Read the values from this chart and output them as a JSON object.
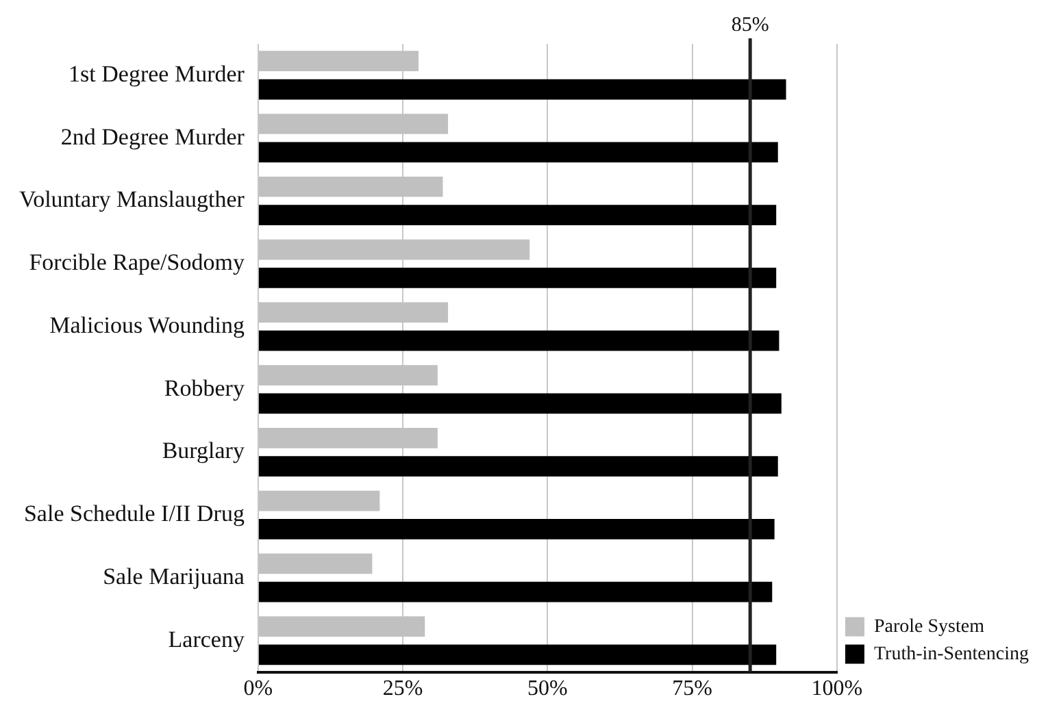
{
  "chart_data": {
    "type": "bar",
    "orientation": "horizontal",
    "categories": [
      "1st Degree Murder",
      "2nd Degree Murder",
      "Voluntary Manslaugther",
      "Forcible Rape/Sodomy",
      "Malicious Wounding",
      "Robbery",
      "Burglary",
      "Sale Schedule I/II Drug",
      "Sale Marijuana",
      "Larceny"
    ],
    "series": [
      {
        "name": "Parole System",
        "color": "#c0c0c0",
        "values": [
          27.7,
          32.8,
          31.9,
          46.9,
          32.8,
          31,
          31,
          21,
          19.7,
          28.8
        ]
      },
      {
        "name": "Truth-in-Sentencing",
        "color": "#000000",
        "values": [
          91.2,
          89.8,
          89.5,
          89.5,
          90,
          90.4,
          89.8,
          89.2,
          88.8,
          89.5
        ]
      }
    ],
    "xlim": [
      0,
      100
    ],
    "xticks": [
      {
        "value": 0,
        "label": "0%"
      },
      {
        "value": 25,
        "label": "25%"
      },
      {
        "value": 50,
        "label": "50%"
      },
      {
        "value": 75,
        "label": "75%"
      },
      {
        "value": 100,
        "label": "100%"
      }
    ],
    "ref_lines": [
      {
        "axis": "x",
        "value": 85,
        "label": "85%",
        "color": "#222222"
      }
    ],
    "grid": "x",
    "legend": "bottom right"
  }
}
